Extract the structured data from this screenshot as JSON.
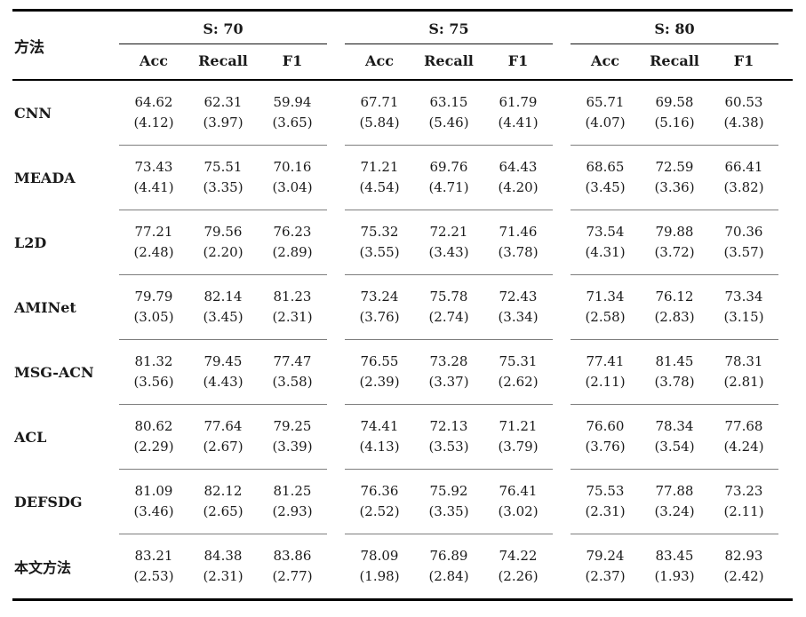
{
  "table": {
    "method_header": "方法",
    "groups": [
      {
        "label": "S: 70",
        "columns": [
          "Acc",
          "Recall",
          "F1"
        ]
      },
      {
        "label": "S: 75",
        "columns": [
          "Acc",
          "Recall",
          "F1"
        ]
      },
      {
        "label": "S: 80",
        "columns": [
          "Acc",
          "Recall",
          "F1"
        ]
      }
    ],
    "rows": [
      {
        "method": "CNN",
        "values": [
          [
            "64.62",
            "(4.12)"
          ],
          [
            "62.31",
            "(3.97)"
          ],
          [
            "59.94",
            "(3.65)"
          ],
          [
            "67.71",
            "(5.84)"
          ],
          [
            "63.15",
            "(5.46)"
          ],
          [
            "61.79",
            "(4.41)"
          ],
          [
            "65.71",
            "(4.07)"
          ],
          [
            "69.58",
            "(5.16)"
          ],
          [
            "60.53",
            "(4.38)"
          ]
        ]
      },
      {
        "method": "MEADA",
        "values": [
          [
            "73.43",
            "(4.41)"
          ],
          [
            "75.51",
            "(3.35)"
          ],
          [
            "70.16",
            "(3.04)"
          ],
          [
            "71.21",
            "(4.54)"
          ],
          [
            "69.76",
            "(4.71)"
          ],
          [
            "64.43",
            "(4.20)"
          ],
          [
            "68.65",
            "(3.45)"
          ],
          [
            "72.59",
            "(3.36)"
          ],
          [
            "66.41",
            "(3.82)"
          ]
        ]
      },
      {
        "method": "L2D",
        "values": [
          [
            "77.21",
            "(2.48)"
          ],
          [
            "79.56",
            "(2.20)"
          ],
          [
            "76.23",
            "(2.89)"
          ],
          [
            "75.32",
            "(3.55)"
          ],
          [
            "72.21",
            "(3.43)"
          ],
          [
            "71.46",
            "(3.78)"
          ],
          [
            "73.54",
            "(4.31)"
          ],
          [
            "79.88",
            "(3.72)"
          ],
          [
            "70.36",
            "(3.57)"
          ]
        ]
      },
      {
        "method": "AMINet",
        "values": [
          [
            "79.79",
            "(3.05)"
          ],
          [
            "82.14",
            "(3.45)"
          ],
          [
            "81.23",
            "(2.31)"
          ],
          [
            "73.24",
            "(3.76)"
          ],
          [
            "75.78",
            "(2.74)"
          ],
          [
            "72.43",
            "(3.34)"
          ],
          [
            "71.34",
            "(2.58)"
          ],
          [
            "76.12",
            "(2.83)"
          ],
          [
            "73.34",
            "(3.15)"
          ]
        ]
      },
      {
        "method": "MSG-ACN",
        "values": [
          [
            "81.32",
            "(3.56)"
          ],
          [
            "79.45",
            "(4.43)"
          ],
          [
            "77.47",
            "(3.58)"
          ],
          [
            "76.55",
            "(2.39)"
          ],
          [
            "73.28",
            "(3.37)"
          ],
          [
            "75.31",
            "(2.62)"
          ],
          [
            "77.41",
            "(2.11)"
          ],
          [
            "81.45",
            "(3.78)"
          ],
          [
            "78.31",
            "(2.81)"
          ]
        ]
      },
      {
        "method": "ACL",
        "values": [
          [
            "80.62",
            "(2.29)"
          ],
          [
            "77.64",
            "(2.67)"
          ],
          [
            "79.25",
            "(3.39)"
          ],
          [
            "74.41",
            "(4.13)"
          ],
          [
            "72.13",
            "(3.53)"
          ],
          [
            "71.21",
            "(3.79)"
          ],
          [
            "76.60",
            "(3.76)"
          ],
          [
            "78.34",
            "(3.54)"
          ],
          [
            "77.68",
            "(4.24)"
          ]
        ]
      },
      {
        "method": "DEFSDG",
        "values": [
          [
            "81.09",
            "(3.46)"
          ],
          [
            "82.12",
            "(2.65)"
          ],
          [
            "81.25",
            "(2.93)"
          ],
          [
            "76.36",
            "(2.52)"
          ],
          [
            "75.92",
            "(3.35)"
          ],
          [
            "76.41",
            "(3.02)"
          ],
          [
            "75.53",
            "(2.31)"
          ],
          [
            "77.88",
            "(3.24)"
          ],
          [
            "73.23",
            "(2.11)"
          ]
        ]
      },
      {
        "method": "本文方法",
        "values": [
          [
            "83.21",
            "(2.53)"
          ],
          [
            "84.38",
            "(2.31)"
          ],
          [
            "83.86",
            "(2.77)"
          ],
          [
            "78.09",
            "(1.98)"
          ],
          [
            "76.89",
            "(2.84)"
          ],
          [
            "74.22",
            "(2.26)"
          ],
          [
            "79.24",
            "(2.37)"
          ],
          [
            "83.45",
            "(1.93)"
          ],
          [
            "82.93",
            "(2.42)"
          ]
        ]
      }
    ]
  }
}
